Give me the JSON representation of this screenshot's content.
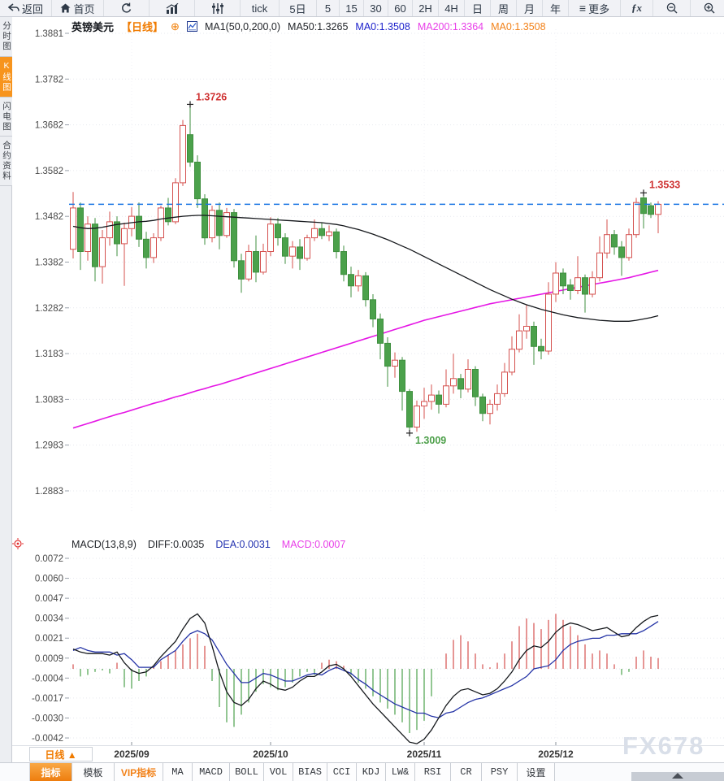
{
  "topbar": {
    "items": [
      {
        "label": "返回",
        "icon": "back-icon"
      },
      {
        "label": "首页",
        "icon": "home-icon"
      },
      {
        "icon": "refresh-icon"
      },
      {
        "icon": "bar-chart-icon"
      },
      {
        "icon": "sliders-icon"
      },
      {
        "label": "tick"
      },
      {
        "label": "5日"
      },
      {
        "label": "5"
      },
      {
        "label": "15"
      },
      {
        "label": "30"
      },
      {
        "label": "60"
      },
      {
        "label": "2H"
      },
      {
        "label": "4H"
      },
      {
        "label": "日"
      },
      {
        "label": "周"
      },
      {
        "label": "月"
      },
      {
        "label": "年"
      },
      {
        "label": "更多",
        "icon": "menu-icon"
      },
      {
        "label": "ƒx"
      },
      {
        "icon": "zoom-out-icon"
      },
      {
        "icon": "zoom-in-icon"
      },
      {
        "icon": "pencil-icon"
      }
    ]
  },
  "sidebar": {
    "tabs": [
      {
        "label": "分时图",
        "active": false
      },
      {
        "label": "K线图",
        "active": true
      },
      {
        "label": "闪电图",
        "active": false
      },
      {
        "label": "合约资料",
        "active": false
      }
    ]
  },
  "chart_header": {
    "symbol": "英镑美元",
    "period": "【日线】",
    "plus": "⊕",
    "ma_settings": "MA1(50,0,200,0)",
    "ma50_label": "MA50:1.3265",
    "ma0_blue_label": "MA0:1.3508",
    "ma200_label": "MA200:1.3364",
    "ma0_orange_label": "MA0:1.3508"
  },
  "macd_header": {
    "title": "MACD(13,8,9)",
    "diff_label": "DIFF:0.0035",
    "dea_label": "DEA:0.0031",
    "macd_label": "MACD:0.0007"
  },
  "bottom": {
    "period_label": "日线 ▲",
    "tabs": [
      {
        "label": "指标"
      },
      {
        "label": "模板"
      },
      {
        "label": "VIP指标"
      },
      {
        "label": "MA"
      },
      {
        "label": "MACD"
      },
      {
        "label": "BOLL"
      },
      {
        "label": "VOL"
      },
      {
        "label": "BIAS"
      },
      {
        "label": "CCI"
      },
      {
        "label": "KDJ"
      },
      {
        "label": "LW&"
      },
      {
        "label": "RSI"
      },
      {
        "label": "CR"
      },
      {
        "label": "PSY"
      },
      {
        "label": "设置"
      }
    ]
  },
  "watermark": "FX678",
  "chart_data": {
    "type": "candlestick+macd",
    "symbol": "英镑美元 (GBP/USD)",
    "interval": "日线",
    "price_axis_labels": [
      "1.3881",
      "1.3782",
      "1.3682",
      "1.3582",
      "1.3482",
      "1.3382",
      "1.3282",
      "1.3183",
      "1.3083",
      "1.2983",
      "1.2883"
    ],
    "price_range": [
      1.2883,
      1.3881
    ],
    "macd_axis_labels": [
      "0.0072",
      "0.0060",
      "0.0047",
      "0.0034",
      "0.0021",
      "0.0009",
      "-0.0004",
      "-0.0017",
      "-0.0030",
      "-0.0042"
    ],
    "months": [
      {
        "label": "2025/09",
        "candle_index": 8
      },
      {
        "label": "2025/10",
        "candle_index": 27
      },
      {
        "label": "2025/11",
        "candle_index": 48
      },
      {
        "label": "2025/12",
        "candle_index": 66
      }
    ],
    "current_price": 1.3508,
    "high_marker": {
      "index": 16,
      "price": 1.3726,
      "label": "1.3726"
    },
    "latest_marker": {
      "index": 78,
      "price": 1.3533,
      "label": "1.3533"
    },
    "low_marker": {
      "index": 46,
      "price": 1.3009,
      "label": "1.3009"
    },
    "colors": {
      "up": "#d4504e",
      "down": "#4ba14b",
      "down_stroke": "#3f8f3f",
      "ma50": "#15181c",
      "ma200": "#e516e5",
      "diff": "#15181c",
      "dea": "#2433a6",
      "current_line": "#1b76e4",
      "high_label": "#cf3333",
      "low_label": "#4ea04b",
      "marker_cross": "#222222"
    },
    "candles": [
      [
        1.341,
        1.3535,
        1.339,
        1.35
      ],
      [
        1.35,
        1.3512,
        1.3365,
        1.3405
      ],
      [
        1.3405,
        1.3482,
        1.3385,
        1.3465
      ],
      [
        1.3465,
        1.3478,
        1.334,
        1.3372
      ],
      [
        1.3372,
        1.3452,
        1.3335,
        1.3435
      ],
      [
        1.3435,
        1.3492,
        1.3418,
        1.347
      ],
      [
        1.347,
        1.3482,
        1.3395,
        1.3422
      ],
      [
        1.3422,
        1.3468,
        1.333,
        1.3455
      ],
      [
        1.3455,
        1.3502,
        1.3438,
        1.3482
      ],
      [
        1.3482,
        1.3512,
        1.3415,
        1.3432
      ],
      [
        1.3432,
        1.3448,
        1.3368,
        1.3392
      ],
      [
        1.3392,
        1.3445,
        1.338,
        1.3435
      ],
      [
        1.3435,
        1.3505,
        1.3428,
        1.35
      ],
      [
        1.35,
        1.3522,
        1.3462,
        1.347
      ],
      [
        1.347,
        1.3565,
        1.3465,
        1.3555
      ],
      [
        1.3555,
        1.3692,
        1.3548,
        1.368
      ],
      [
        1.366,
        1.3726,
        1.359,
        1.36
      ],
      [
        1.36,
        1.3615,
        1.35,
        1.352
      ],
      [
        1.352,
        1.353,
        1.342,
        1.3435
      ],
      [
        1.3435,
        1.3505,
        1.3425,
        1.3495
      ],
      [
        1.3495,
        1.3512,
        1.341,
        1.344
      ],
      [
        1.344,
        1.35,
        1.3435,
        1.349
      ],
      [
        1.349,
        1.3498,
        1.337,
        1.3385
      ],
      [
        1.3385,
        1.34,
        1.3315,
        1.3345
      ],
      [
        1.3345,
        1.342,
        1.334,
        1.3405
      ],
      [
        1.3405,
        1.344,
        1.3338,
        1.336
      ],
      [
        1.336,
        1.3422,
        1.3355,
        1.3405
      ],
      [
        1.3405,
        1.348,
        1.3395,
        1.3465
      ],
      [
        1.3465,
        1.3478,
        1.3418,
        1.3435
      ],
      [
        1.3435,
        1.3445,
        1.3378,
        1.3395
      ],
      [
        1.3395,
        1.3428,
        1.3368,
        1.3415
      ],
      [
        1.3415,
        1.3432,
        1.3365,
        1.339
      ],
      [
        1.339,
        1.3442,
        1.3385,
        1.3435
      ],
      [
        1.3435,
        1.3475,
        1.3428,
        1.3455
      ],
      [
        1.3455,
        1.3468,
        1.3432,
        1.344
      ],
      [
        1.344,
        1.3462,
        1.3428,
        1.3448
      ],
      [
        1.3448,
        1.3455,
        1.339,
        1.3405
      ],
      [
        1.3405,
        1.3418,
        1.334,
        1.3355
      ],
      [
        1.3355,
        1.3372,
        1.3305,
        1.333
      ],
      [
        1.333,
        1.3365,
        1.3318,
        1.3352
      ],
      [
        1.3352,
        1.336,
        1.3285,
        1.33
      ],
      [
        1.33,
        1.3312,
        1.324,
        1.3258
      ],
      [
        1.3258,
        1.327,
        1.317,
        1.3205
      ],
      [
        1.3205,
        1.3218,
        1.311,
        1.3155
      ],
      [
        1.3155,
        1.3185,
        1.313,
        1.3168
      ],
      [
        1.3168,
        1.3175,
        1.3058,
        1.31
      ],
      [
        1.31,
        1.3105,
        1.3009,
        1.3022
      ],
      [
        1.3022,
        1.308,
        1.3012,
        1.3068
      ],
      [
        1.3068,
        1.3108,
        1.304,
        1.3078
      ],
      [
        1.3078,
        1.3115,
        1.306,
        1.3092
      ],
      [
        1.3092,
        1.3102,
        1.3052,
        1.3072
      ],
      [
        1.3072,
        1.3148,
        1.3065,
        1.3112
      ],
      [
        1.3112,
        1.3182,
        1.3095,
        1.3128
      ],
      [
        1.3128,
        1.3138,
        1.3085,
        1.3105
      ],
      [
        1.3105,
        1.317,
        1.3098,
        1.3148
      ],
      [
        1.3148,
        1.3155,
        1.3068,
        1.3088
      ],
      [
        1.3088,
        1.3095,
        1.3035,
        1.3052
      ],
      [
        1.3052,
        1.3082,
        1.3028,
        1.3072
      ],
      [
        1.3072,
        1.3115,
        1.3058,
        1.3095
      ],
      [
        1.3095,
        1.3162,
        1.3088,
        1.3142
      ],
      [
        1.3142,
        1.322,
        1.3135,
        1.3192
      ],
      [
        1.3192,
        1.3268,
        1.3185,
        1.3232
      ],
      [
        1.3232,
        1.3288,
        1.3215,
        1.3242
      ],
      [
        1.3242,
        1.3252,
        1.3158,
        1.3198
      ],
      [
        1.3198,
        1.3215,
        1.317,
        1.3188
      ],
      [
        1.3188,
        1.3338,
        1.318,
        1.3312
      ],
      [
        1.3312,
        1.3382,
        1.3295,
        1.3358
      ],
      [
        1.3358,
        1.3368,
        1.3312,
        1.333
      ],
      [
        1.3332,
        1.3345,
        1.33,
        1.332
      ],
      [
        1.332,
        1.3395,
        1.3312,
        1.3348
      ],
      [
        1.3348,
        1.3355,
        1.3272,
        1.3312
      ],
      [
        1.3312,
        1.3362,
        1.3305,
        1.3348
      ],
      [
        1.3348,
        1.3438,
        1.334,
        1.3402
      ],
      [
        1.3402,
        1.3475,
        1.339,
        1.3442
      ],
      [
        1.3442,
        1.3452,
        1.3398,
        1.3415
      ],
      [
        1.3415,
        1.3428,
        1.3352,
        1.3392
      ],
      [
        1.3392,
        1.3455,
        1.3385,
        1.3442
      ],
      [
        1.3442,
        1.3522,
        1.3435,
        1.3512
      ],
      [
        1.3522,
        1.3533,
        1.3455,
        1.3488
      ],
      [
        1.3505,
        1.3512,
        1.3478,
        1.3486
      ],
      [
        1.3486,
        1.3515,
        1.3445,
        1.3508
      ]
    ],
    "ma50": [
      1.346,
      1.3457,
      1.3455,
      1.3456,
      1.3458,
      1.3461,
      1.3464,
      1.3466,
      1.3468,
      1.347,
      1.3471,
      1.3473,
      1.3476,
      1.3478,
      1.348,
      1.3482,
      1.3483,
      1.3484,
      1.3484,
      1.3483,
      1.3482,
      1.3481,
      1.348,
      1.3479,
      1.3478,
      1.3477,
      1.3476,
      1.3475,
      1.3474,
      1.3473,
      1.3472,
      1.3471,
      1.347,
      1.3469,
      1.3468,
      1.3466,
      1.3464,
      1.3461,
      1.3457,
      1.3453,
      1.3448,
      1.3443,
      1.3437,
      1.3431,
      1.3424,
      1.3417,
      1.341,
      1.3402,
      1.3394,
      1.3386,
      1.3378,
      1.337,
      1.3362,
      1.3354,
      1.3346,
      1.3338,
      1.333,
      1.3322,
      1.3315,
      1.3308,
      1.3301,
      1.3295,
      1.3289,
      1.3284,
      1.3279,
      1.3275,
      1.3271,
      1.3267,
      1.3264,
      1.3261,
      1.3259,
      1.3257,
      1.3255,
      1.3254,
      1.3253,
      1.3253,
      1.3253,
      1.3255,
      1.3258,
      1.3261,
      1.3265
    ],
    "ma200": [
      1.302,
      1.3025,
      1.303,
      1.3035,
      1.304,
      1.3045,
      1.305,
      1.3054,
      1.3059,
      1.3064,
      1.3069,
      1.3074,
      1.3078,
      1.3083,
      1.3088,
      1.3092,
      1.3097,
      1.3102,
      1.3106,
      1.3111,
      1.3115,
      1.312,
      1.3125,
      1.313,
      1.3135,
      1.314,
      1.3145,
      1.315,
      1.3155,
      1.316,
      1.3165,
      1.317,
      1.3175,
      1.318,
      1.3185,
      1.319,
      1.3195,
      1.32,
      1.3205,
      1.321,
      1.3215,
      1.322,
      1.3225,
      1.323,
      1.3235,
      1.324,
      1.3245,
      1.325,
      1.3255,
      1.3259,
      1.3263,
      1.3267,
      1.3271,
      1.3275,
      1.3279,
      1.3283,
      1.3287,
      1.3291,
      1.3294,
      1.3297,
      1.33,
      1.3303,
      1.3306,
      1.3309,
      1.3312,
      1.3315,
      1.3318,
      1.3321,
      1.3324,
      1.3327,
      1.333,
      1.3333,
      1.3336,
      1.3339,
      1.3342,
      1.3345,
      1.3348,
      1.3352,
      1.3356,
      1.336,
      1.3364
    ],
    "macd": {
      "params": "13,8,9",
      "diff_current": 0.0035,
      "dea_current": 0.0031,
      "macd_current": 0.0007,
      "hist": [
        0.0003,
        -0.0005,
        -0.0004,
        -0.0002,
        -0.0001,
        -0.0003,
        0.0004,
        -0.0012,
        -0.0013,
        -0.0008,
        -0.0005,
        0.0002,
        0.0005,
        0.0009,
        0.0012,
        0.0016,
        0.002,
        0.0023,
        0.0015,
        -0.0008,
        -0.0025,
        -0.0035,
        -0.0038,
        -0.003,
        -0.0022,
        -0.0015,
        -0.001,
        -0.0012,
        -0.0014,
        -0.0012,
        -0.0009,
        -0.0005,
        -0.0002,
        -0.0004,
        0.0004,
        0.0006,
        0.0005,
        0.0002,
        -0.0004,
        -0.0009,
        -0.0013,
        -0.0018,
        -0.0022,
        -0.0026,
        -0.003,
        -0.0035,
        -0.0042,
        -0.004,
        -0.0034,
        -0.0018,
        0.0,
        0.001,
        0.0019,
        0.0022,
        0.0018,
        0.001,
        0.0003,
        0.0001,
        0.0004,
        0.001,
        0.0018,
        0.0028,
        0.0033,
        0.003,
        0.0026,
        0.0032,
        0.0036,
        0.0032,
        0.0028,
        0.0022,
        0.0016,
        0.001,
        0.0012,
        0.001,
        0.0003,
        -0.0004,
        -0.0002,
        0.0008,
        0.0012,
        0.0008,
        0.0007
      ],
      "diff": [
        0.0013,
        0.0011,
        0.001,
        0.001,
        0.001,
        0.0009,
        0.0011,
        0.0004,
        -0.0001,
        -0.0003,
        -0.0002,
        0.0002,
        0.0008,
        0.0013,
        0.0018,
        0.0026,
        0.0033,
        0.0036,
        0.003,
        0.0015,
        -0.0002,
        -0.0015,
        -0.0022,
        -0.0024,
        -0.002,
        -0.0013,
        -0.0008,
        -0.001,
        -0.0013,
        -0.0014,
        -0.0012,
        -0.0008,
        -0.0005,
        -0.0005,
        -0.0002,
        0.0002,
        0.0003,
        0.0,
        -0.0005,
        -0.0011,
        -0.0017,
        -0.0023,
        -0.0028,
        -0.0033,
        -0.0038,
        -0.0043,
        -0.0048,
        -0.0049,
        -0.0046,
        -0.004,
        -0.0032,
        -0.0024,
        -0.0018,
        -0.0014,
        -0.0013,
        -0.0015,
        -0.0017,
        -0.0016,
        -0.0013,
        -0.0008,
        -0.0002,
        0.0006,
        0.0012,
        0.0015,
        0.0014,
        0.0018,
        0.0024,
        0.0028,
        0.003,
        0.0029,
        0.0027,
        0.0025,
        0.0026,
        0.0027,
        0.0024,
        0.0021,
        0.0022,
        0.0027,
        0.0031,
        0.0034,
        0.0035
      ],
      "dea": [
        0.0012,
        0.0014,
        0.0012,
        0.0011,
        0.0011,
        0.0011,
        0.0009,
        0.001,
        0.0006,
        0.0001,
        0.0001,
        0.0001,
        0.0006,
        0.0009,
        0.0012,
        0.0018,
        0.0023,
        0.0025,
        0.0023,
        0.0019,
        0.0011,
        0.0003,
        -0.0003,
        -0.0009,
        -0.0009,
        -0.0006,
        -0.0003,
        -0.0004,
        -0.0006,
        -0.0008,
        -0.0008,
        -0.0006,
        -0.0004,
        -0.0003,
        -0.0004,
        -0.0001,
        0.0001,
        -0.0001,
        -0.0003,
        -0.0007,
        -0.001,
        -0.0014,
        -0.0017,
        -0.002,
        -0.0023,
        -0.0025,
        -0.0027,
        -0.0029,
        -0.0029,
        -0.0031,
        -0.0032,
        -0.0029,
        -0.0028,
        -0.0025,
        -0.0022,
        -0.002,
        -0.0019,
        -0.0017,
        -0.0015,
        -0.0013,
        -0.0011,
        -0.0008,
        -0.0005,
        0.0,
        0.0001,
        0.0002,
        0.0006,
        0.0012,
        0.0016,
        0.0018,
        0.0019,
        0.002,
        0.002,
        0.0022,
        0.0022,
        0.0023,
        0.0023,
        0.0023,
        0.0025,
        0.0028,
        0.0031
      ]
    }
  }
}
